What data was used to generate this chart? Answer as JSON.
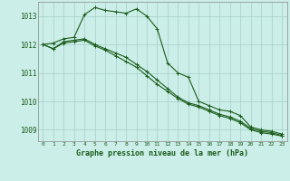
{
  "title": "Graphe pression niveau de la mer (hPa)",
  "background_color": "#cceee8",
  "grid_color": "#aad4cc",
  "line_color": "#1a5c1a",
  "xlim": [
    -0.5,
    23.5
  ],
  "ylim": [
    1008.6,
    1013.5
  ],
  "yticks": [
    1009,
    1010,
    1011,
    1012,
    1013
  ],
  "xticks": [
    0,
    1,
    2,
    3,
    4,
    5,
    6,
    7,
    8,
    9,
    10,
    11,
    12,
    13,
    14,
    15,
    16,
    17,
    18,
    19,
    20,
    21,
    22,
    23
  ],
  "series": [
    [
      1012.0,
      1012.05,
      1012.2,
      1012.25,
      1013.05,
      1013.3,
      1013.2,
      1013.15,
      1013.1,
      1013.25,
      1013.0,
      1012.55,
      1011.35,
      1011.0,
      1010.85,
      1010.0,
      1009.85,
      1009.7,
      1009.65,
      1009.5,
      1009.1,
      1009.0,
      1008.95,
      1008.85
    ],
    [
      1012.0,
      1011.85,
      1012.1,
      1012.15,
      1012.2,
      1012.0,
      1011.85,
      1011.7,
      1011.55,
      1011.3,
      1011.05,
      1010.75,
      1010.45,
      1010.15,
      1009.95,
      1009.85,
      1009.7,
      1009.55,
      1009.45,
      1009.3,
      1009.05,
      1008.95,
      1008.9,
      1008.8
    ],
    [
      1012.0,
      1011.85,
      1012.05,
      1012.1,
      1012.15,
      1011.95,
      1011.8,
      1011.6,
      1011.4,
      1011.2,
      1010.9,
      1010.6,
      1010.35,
      1010.1,
      1009.9,
      1009.8,
      1009.65,
      1009.5,
      1009.4,
      1009.25,
      1009.0,
      1008.9,
      1008.85,
      1008.78
    ]
  ]
}
